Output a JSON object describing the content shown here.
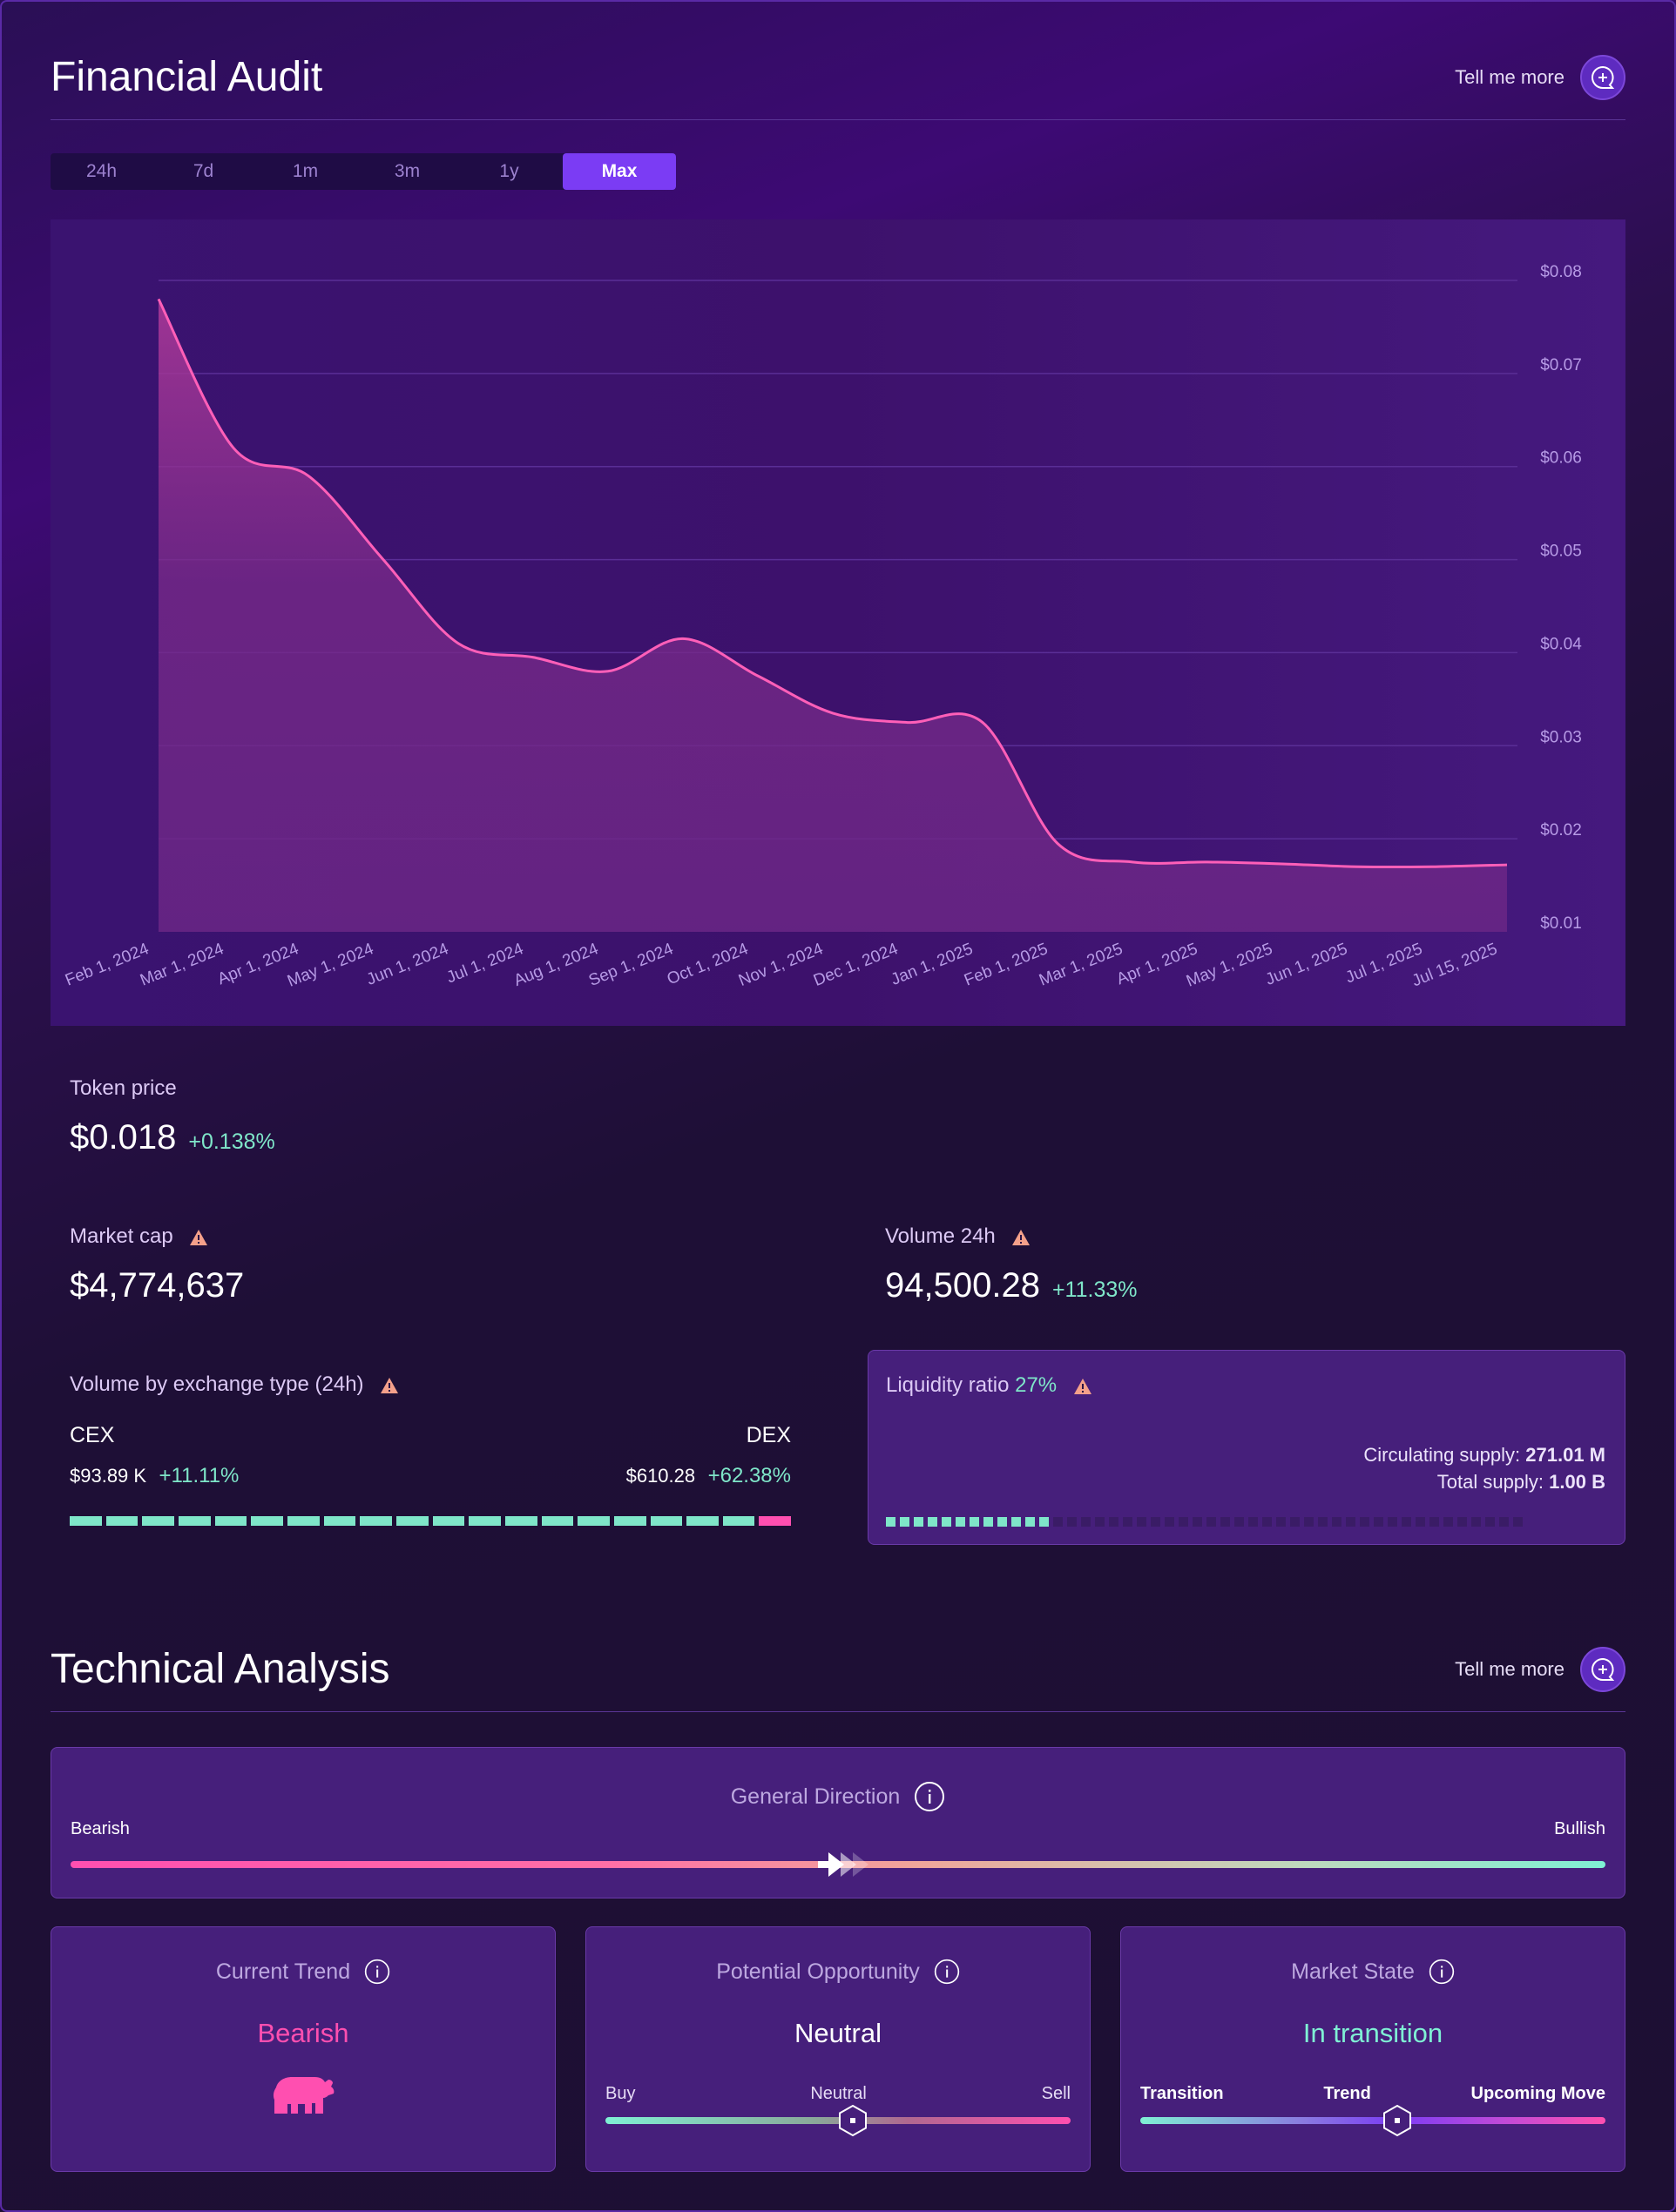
{
  "financial": {
    "title": "Financial Audit",
    "tell_more": "Tell me more",
    "tabs": [
      "24h",
      "7d",
      "1m",
      "3m",
      "1y"
    ],
    "active_tab": "Max"
  },
  "chart_data": {
    "type": "area",
    "x": [
      "Feb 1, 2024",
      "Mar 1, 2024",
      "Apr 1, 2024",
      "May 1, 2024",
      "Jun 1, 2024",
      "Jul 1, 2024",
      "Aug 1, 2024",
      "Sep 1, 2024",
      "Oct 1, 2024",
      "Nov 1, 2024",
      "Dec 1, 2024",
      "Jan 1, 2025",
      "Feb 1, 2025",
      "Mar 1, 2025",
      "Apr 1, 2025",
      "May 1, 2025",
      "Jun 1, 2025",
      "Jul 1, 2025",
      "Jul 15, 2025"
    ],
    "y": [
      0.078,
      0.062,
      0.059,
      0.05,
      0.041,
      0.0395,
      0.038,
      0.0415,
      0.0375,
      0.0335,
      0.0325,
      0.0325,
      0.0195,
      0.0175,
      0.0175,
      0.0173,
      0.017,
      0.017,
      0.0172
    ],
    "y_ticks": [
      "$0.08",
      "$0.07",
      "$0.06",
      "$0.05",
      "$0.04",
      "$0.03",
      "$0.02",
      "$0.01"
    ],
    "ylim": [
      0.01,
      0.08
    ],
    "line_color": "#ff5fb8",
    "grid": true
  },
  "metrics": {
    "token_price_label": "Token price",
    "token_price": "$0.018",
    "token_price_change": "+0.138%",
    "market_cap_label": "Market cap",
    "market_cap": "$4,774,637",
    "volume_label": "Volume 24h",
    "volume": "94,500.28",
    "volume_change": "+11.33%"
  },
  "exchange": {
    "label": "Volume by exchange type (24h)",
    "cex_label": "CEX",
    "cex_value": "$93.89 K",
    "cex_change": "+11.11%",
    "dex_label": "DEX",
    "dex_value": "$610.28",
    "dex_change": "+62.38%",
    "cex_segments": 19,
    "dex_segments": 1
  },
  "liquidity": {
    "label": "Liquidity ratio",
    "ratio": "27%",
    "circ_label": "Circulating supply:",
    "circ_value": "271.01 M",
    "total_label": "Total supply:",
    "total_value": "1.00 B",
    "filled_fraction": 0.27
  },
  "technical": {
    "title": "Technical Analysis",
    "tell_more": "Tell me more",
    "direction_title": "General Direction",
    "bearish": "Bearish",
    "bullish": "Bullish",
    "direction_position": 0.49,
    "trend_title": "Current Trend",
    "trend_value": "Bearish",
    "opportunity_title": "Potential Opportunity",
    "opportunity_value": "Neutral",
    "buy": "Buy",
    "neutral": "Neutral",
    "sell": "Sell",
    "opportunity_position": 0.53,
    "state_title": "Market State",
    "state_value": "In transition",
    "transition": "Transition",
    "trend": "Trend",
    "upcoming": "Upcoming Move",
    "state_position": 0.55
  },
  "colors": {
    "accent": "#7b3cf4",
    "positive": "#7fe6c9",
    "negative": "#ff4fb0",
    "warning": "#f4a08a"
  }
}
